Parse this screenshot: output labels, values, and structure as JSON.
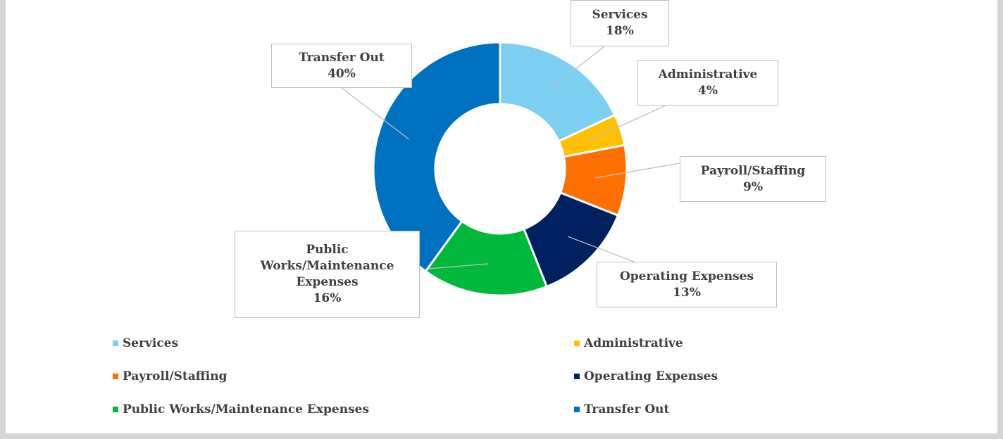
{
  "chart_data": {
    "type": "donut",
    "categories": [
      "Services",
      "Administrative",
      "Payroll/Staffing",
      "Operating Expenses",
      "Public Works/Maintenance Expenses",
      "Transfer Out"
    ],
    "values": [
      18,
      4,
      9,
      13,
      16,
      40
    ],
    "value_labels": [
      "18%",
      "4%",
      "9%",
      "13%",
      "16%",
      "40%"
    ],
    "colors": [
      "#7ccff0",
      "#ffc000",
      "#ff7000",
      "#002060",
      "#00b83c",
      "#0070c0"
    ],
    "legend": "bottom"
  }
}
